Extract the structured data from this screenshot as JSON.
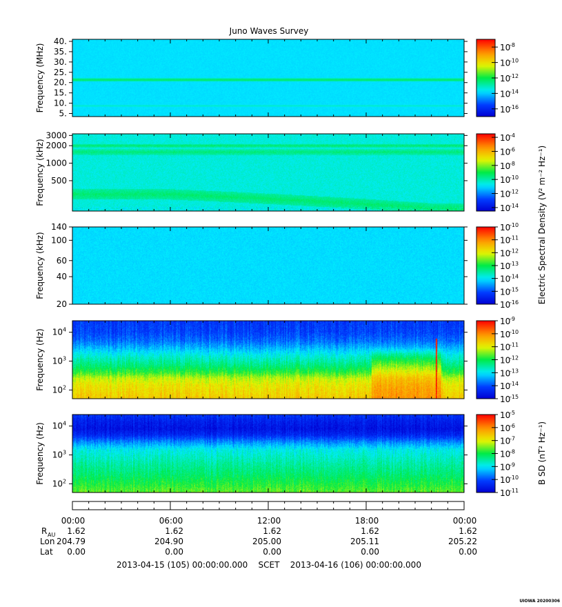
{
  "title": "Juno Waves Survey",
  "watermark": "UIOWA 20200306",
  "time_axis": {
    "tick_labels": [
      "00:00",
      "06:00",
      "12:00",
      "18:00",
      "00:00"
    ],
    "rows": [
      {
        "label": "R",
        "sub": "AU",
        "values": [
          "1.62",
          "1.62",
          "1.62",
          "1.62",
          "1.62"
        ]
      },
      {
        "label": "Lon",
        "sub": "",
        "values": [
          "204.79",
          "204.90",
          "205.00",
          "205.11",
          "205.22"
        ]
      },
      {
        "label": "Lat",
        "sub": "",
        "values": [
          "0.00",
          "0.00",
          "0.00",
          "0.00",
          "0.00"
        ]
      }
    ],
    "footer": "2013-04-15 (105) 00:00:00.000    SCET    2013-04-16 (106) 00:00:00.000"
  },
  "colorbar_titles": {
    "electric": "Electric Spectral Density (V² m⁻² Hz⁻¹)",
    "magnetic": "B SD (nT² Hz⁻¹)"
  },
  "chart_data": [
    {
      "type": "heatmap",
      "ylabel": "Frequency (MHz)",
      "y_scale": "linear",
      "ylim": [
        3.5,
        41
      ],
      "y_ticks": [
        {
          "v": 40,
          "label": "40."
        },
        {
          "v": 35,
          "label": "35."
        },
        {
          "v": 30,
          "label": "30."
        },
        {
          "v": 25,
          "label": "25."
        },
        {
          "v": 20,
          "label": "20."
        },
        {
          "v": 15,
          "label": "15."
        },
        {
          "v": 10,
          "label": "10."
        },
        {
          "v": 5,
          "label": "5."
        }
      ],
      "colorbar": {
        "exponents": [
          -8,
          -10,
          -12,
          -14,
          -16
        ],
        "range": [
          -17,
          -7
        ]
      },
      "background": -13.8,
      "bands": [
        {
          "y": 21.3,
          "width": 0.8,
          "value": -12.2
        },
        {
          "y": 8.7,
          "width": 0.5,
          "value": -13.2
        }
      ]
    },
    {
      "type": "heatmap",
      "ylabel": "Frequency (kHz)",
      "y_scale": "log",
      "ylim": [
        150,
        3200
      ],
      "y_ticks": [
        {
          "v": 3000,
          "label": "3000"
        },
        {
          "v": 2000,
          "label": "2000"
        },
        {
          "v": 1000,
          "label": "1000"
        },
        {
          "v": 500,
          "label": "500"
        }
      ],
      "colorbar": {
        "exponents": [
          -4,
          -6,
          -8,
          -10,
          -12,
          -14
        ],
        "range": [
          -14.5,
          -3.5
        ]
      },
      "background": -10.5,
      "bands": [
        {
          "y": 2000,
          "width": 0.03,
          "value": -9.4
        },
        {
          "y": 1550,
          "width": 0.05,
          "value": -9.5
        }
      ],
      "emission": {
        "start": 290,
        "end": 165,
        "transition_hours": [
          6,
          22
        ],
        "value": -9.4
      }
    },
    {
      "type": "heatmap",
      "ylabel": "Frequency (kHz)",
      "y_scale": "log",
      "ylim": [
        20,
        140
      ],
      "y_ticks": [
        {
          "v": 140,
          "label": "140"
        },
        {
          "v": 100,
          "label": "100"
        },
        {
          "v": 60,
          "label": "60"
        },
        {
          "v": 40,
          "label": "40"
        },
        {
          "v": 20,
          "label": "20"
        }
      ],
      "colorbar": {
        "exponents": [
          -10,
          -11,
          -12,
          -13,
          -14,
          -15,
          -16
        ],
        "range": [
          -16,
          -10
        ]
      },
      "background": -14.1
    },
    {
      "type": "heatmap",
      "ylabel": "Frequency (Hz)",
      "y_scale": "log",
      "ylim": [
        50,
        25000
      ],
      "y_ticks": [
        {
          "v": 10000,
          "label": "10",
          "exp": "4"
        },
        {
          "v": 1000,
          "label": "10",
          "exp": "3"
        },
        {
          "v": 100,
          "label": "10",
          "exp": "2"
        }
      ],
      "colorbar": {
        "exponents": [
          -9,
          -10,
          -11,
          -12,
          -13,
          -14,
          -15
        ],
        "range": [
          -15,
          -9
        ]
      },
      "profile": [
        [
          50,
          -10.6
        ],
        [
          150,
          -10.9
        ],
        [
          250,
          -11.2
        ],
        [
          400,
          -11.8
        ],
        [
          700,
          -12.3
        ],
        [
          1500,
          -12.8
        ],
        [
          3000,
          -13.4
        ],
        [
          5000,
          -13.8
        ],
        [
          10000,
          -14.1
        ],
        [
          25000,
          -14.2
        ]
      ],
      "events": [
        {
          "from": 18.3,
          "to": 22.6,
          "value": -10.1
        },
        {
          "at": 22.3,
          "value": -9.2
        }
      ]
    },
    {
      "type": "heatmap",
      "ylabel": "Frequency (Hz)",
      "y_scale": "log",
      "ylim": [
        50,
        25000
      ],
      "y_ticks": [
        {
          "v": 10000,
          "label": "10",
          "exp": "4"
        },
        {
          "v": 1000,
          "label": "10",
          "exp": "3"
        },
        {
          "v": 100,
          "label": "10",
          "exp": "2"
        }
      ],
      "colorbar": {
        "exponents": [
          -5,
          -6,
          -7,
          -8,
          -9,
          -10,
          -11
        ],
        "range": [
          -11,
          -5
        ]
      },
      "profile": [
        [
          50,
          -7.6
        ],
        [
          100,
          -7.9
        ],
        [
          200,
          -8.2
        ],
        [
          500,
          -8.5
        ],
        [
          1500,
          -8.9
        ],
        [
          3000,
          -9.7
        ],
        [
          5000,
          -10.4
        ],
        [
          8000,
          -10.7
        ],
        [
          15000,
          -10.5
        ],
        [
          25000,
          -10.2
        ]
      ]
    }
  ]
}
